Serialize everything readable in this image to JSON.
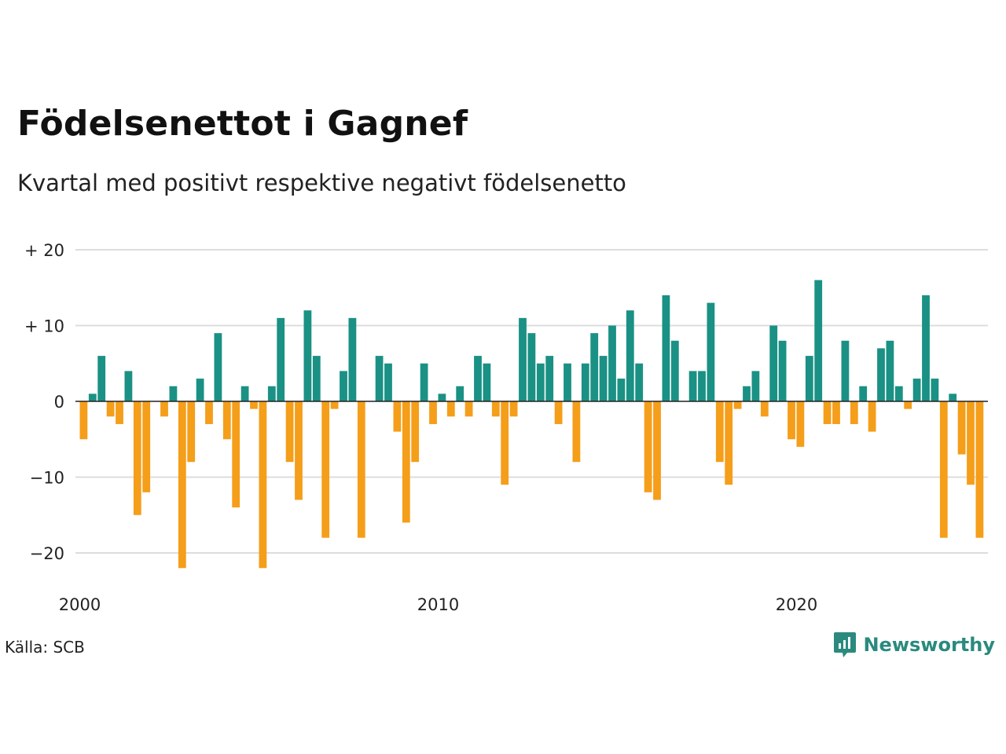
{
  "title": "Födelsenettot i Gagnef",
  "subtitle": "Kvartal med positivt respektive negativt födelsenetto",
  "source": "Källa: SCB",
  "brand": "Newsworthy",
  "colors": {
    "positive": "#1a9184",
    "negative": "#f59e1a",
    "grid": "#dddddd",
    "zero": "#222222"
  },
  "chart_data": {
    "type": "bar",
    "title": "Födelsenettot i Gagnef",
    "subtitle": "Kvartal med positivt respektive negativt födelsenetto",
    "x_start": "2000-Q1",
    "x_ticks": [
      "2000",
      "2010",
      "2020"
    ],
    "y_ticks": [
      "+ 20",
      "+ 10",
      "0",
      "−10",
      "−20"
    ],
    "y_tick_values": [
      20,
      10,
      0,
      -10,
      -20
    ],
    "ylim": [
      -24,
      20
    ],
    "grid": true,
    "values": [
      -5,
      1,
      6,
      -2,
      -3,
      4,
      -15,
      -12,
      0,
      -2,
      2,
      -22,
      -8,
      3,
      -3,
      9,
      -5,
      -14,
      2,
      -1,
      -22,
      2,
      11,
      -8,
      -13,
      12,
      6,
      -18,
      -1,
      4,
      11,
      -18,
      0,
      6,
      5,
      -4,
      -16,
      -8,
      5,
      -3,
      1,
      -2,
      2,
      -2,
      6,
      5,
      -2,
      -11,
      -2,
      11,
      9,
      5,
      6,
      -3,
      5,
      -8,
      5,
      9,
      6,
      10,
      3,
      12,
      5,
      -12,
      -13,
      14,
      8,
      0,
      4,
      4,
      13,
      -8,
      -11,
      -1,
      2,
      4,
      -2,
      10,
      8,
      -5,
      -6,
      6,
      16,
      -3,
      -3,
      8,
      -3,
      2,
      -4,
      7,
      8,
      2,
      -1,
      3,
      14,
      3,
      -18,
      1,
      -7,
      -11,
      -18
    ]
  }
}
